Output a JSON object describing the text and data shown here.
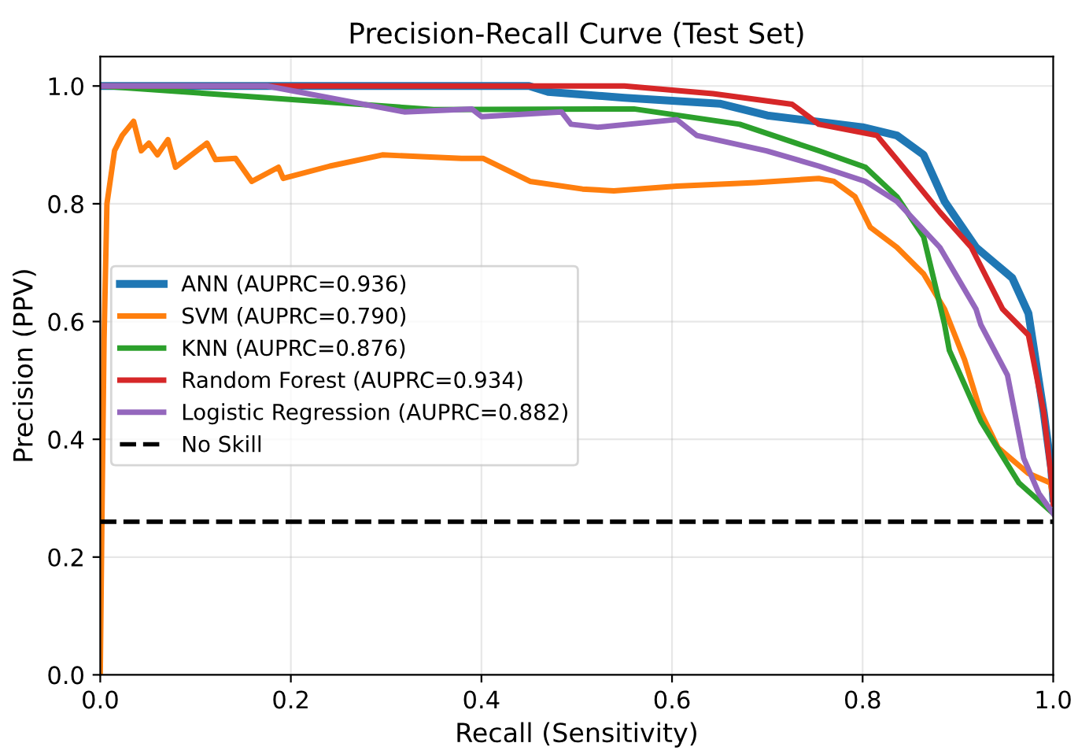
{
  "chart_data": {
    "type": "line",
    "title": "Precision-Recall Curve (Test Set)",
    "xlabel": "Recall (Sensitivity)",
    "ylabel": "Precision (PPV)",
    "xlim": [
      0,
      1.0
    ],
    "ylim": [
      0,
      1.05
    ],
    "xticks": [
      {
        "value": 0,
        "label": "0.0"
      },
      0.2,
      0.4,
      0.6,
      0.8,
      {
        "value": 1,
        "label": "1.0"
      }
    ],
    "yticks": [
      {
        "value": 0,
        "label": "0.0"
      },
      0.2,
      0.4,
      0.6,
      0.8,
      {
        "value": 1,
        "label": "1.0"
      }
    ],
    "grid": true,
    "legend": "left",
    "line_style": "solid",
    "series": [
      {
        "name": "ANN (AUPRC=0.936)",
        "color": "#1f77b4",
        "x": [
          0,
          0.45,
          0.47,
          0.55,
          0.65,
          0.7,
          0.75,
          0.8,
          0.836,
          0.864,
          0.886,
          0.919,
          0.957,
          0.974,
          0.99,
          0.998,
          1.0
        ],
        "values": [
          1.0,
          1.0,
          0.99,
          0.98,
          0.97,
          0.95,
          0.94,
          0.93,
          0.916,
          0.883,
          0.804,
          0.726,
          0.674,
          0.614,
          0.446,
          0.35,
          0.3
        ]
      },
      {
        "name": "SVM (AUPRC=0.790)",
        "color": "#ff7f0e",
        "x": [
          0,
          0.002,
          0.004,
          0.007,
          0.015,
          0.023,
          0.035,
          0.043,
          0.051,
          0.06,
          0.071,
          0.079,
          0.112,
          0.121,
          0.142,
          0.159,
          0.187,
          0.192,
          0.241,
          0.296,
          0.379,
          0.402,
          0.451,
          0.506,
          0.539,
          0.605,
          0.688,
          0.754,
          0.77,
          0.792,
          0.808,
          0.836,
          0.864,
          0.886,
          0.907,
          0.924,
          0.942,
          0.974,
          0.997,
          1.0
        ],
        "values": [
          0,
          0.3,
          0.57,
          0.8,
          0.89,
          0.916,
          0.94,
          0.89,
          0.903,
          0.883,
          0.909,
          0.862,
          0.903,
          0.875,
          0.877,
          0.838,
          0.862,
          0.843,
          0.864,
          0.883,
          0.877,
          0.877,
          0.838,
          0.825,
          0.822,
          0.83,
          0.836,
          0.843,
          0.838,
          0.812,
          0.76,
          0.726,
          0.681,
          0.621,
          0.535,
          0.446,
          0.386,
          0.342,
          0.326,
          0.3
        ]
      },
      {
        "name": "KNN (AUPRC=0.876)",
        "color": "#2ca02c",
        "x": [
          0,
          0.35,
          0.56,
          0.671,
          0.754,
          0.803,
          0.836,
          0.864,
          0.886,
          0.891,
          0.924,
          0.964,
          1.0
        ],
        "values": [
          1.0,
          0.96,
          0.961,
          0.935,
          0.89,
          0.862,
          0.812,
          0.744,
          0.595,
          0.551,
          0.431,
          0.326,
          0.274
        ]
      },
      {
        "name": "Random Forest (AUPRC=0.934)",
        "color": "#d62728",
        "x": [
          0,
          0.55,
          0.643,
          0.726,
          0.754,
          0.815,
          0.836,
          0.881,
          0.914,
          0.947,
          0.974,
          0.99,
          0.998,
          1.0
        ],
        "values": [
          1.0,
          1.0,
          0.987,
          0.969,
          0.935,
          0.916,
          0.875,
          0.786,
          0.726,
          0.621,
          0.577,
          0.446,
          0.334,
          0.29
        ]
      },
      {
        "name": "Logistic Regression (AUPRC=0.882)",
        "color": "#9467bd",
        "x": [
          0,
          0.175,
          0.319,
          0.39,
          0.4,
          0.484,
          0.494,
          0.522,
          0.605,
          0.626,
          0.699,
          0.754,
          0.803,
          0.836,
          0.881,
          0.919,
          0.924,
          0.952,
          0.969,
          0.985,
          1.0
        ],
        "values": [
          1.0,
          1.0,
          0.956,
          0.961,
          0.948,
          0.956,
          0.935,
          0.93,
          0.943,
          0.916,
          0.89,
          0.864,
          0.838,
          0.804,
          0.726,
          0.621,
          0.595,
          0.509,
          0.368,
          0.308,
          0.274
        ]
      }
    ],
    "ref_lines": [
      {
        "axis": "y",
        "value": 0.26,
        "label": "No Skill",
        "color": "#000000",
        "line_style": "dashed"
      }
    ]
  }
}
